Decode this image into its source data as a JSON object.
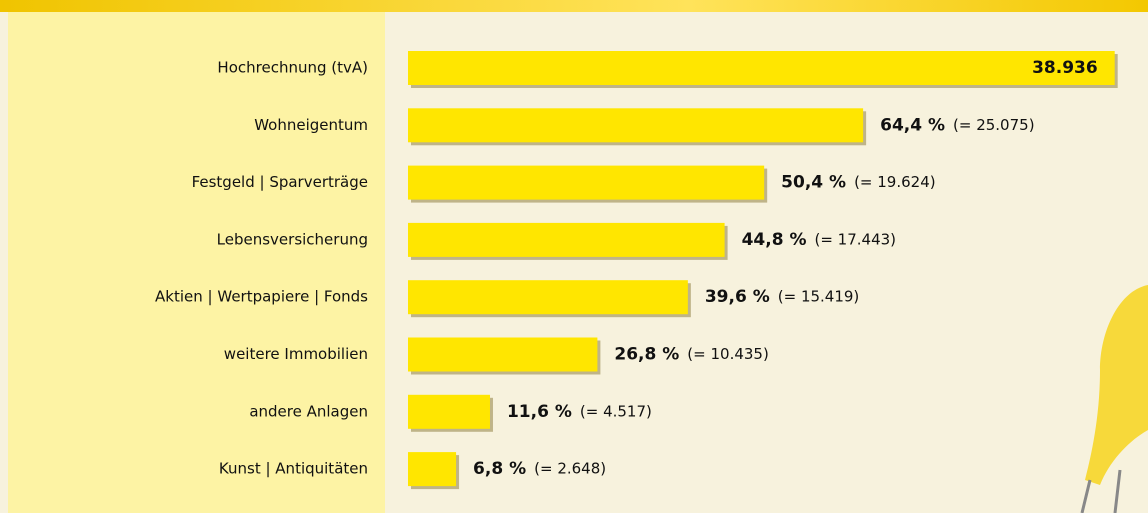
{
  "chart_data": {
    "type": "hbar",
    "categories": [
      "Hochrechnung (tvA)",
      "Wohneigentum",
      "Festgeld | Sparverträge",
      "Lebensversicherung",
      "Aktien | Wertpapiere | Fonds",
      "weitere Immobilien",
      "andere Anlagen",
      "Kunst | Antiquitäten"
    ],
    "values": [
      38936,
      25075,
      19624,
      17443,
      15419,
      10435,
      4517,
      2648
    ],
    "value_labels": [
      "38.936",
      "(= 25.075)",
      "(= 19.624)",
      "(= 17.443)",
      "(= 15.419)",
      "(= 10.435)",
      "(= 4.517)",
      "(= 2.648)"
    ],
    "percent_labels": [
      null,
      "64,4 %",
      "50,4 %",
      "44,8 %",
      "39,6 %",
      "26,8 %",
      "11,6 %",
      "6,8 %"
    ],
    "color": "#ffe600",
    "xlim": [
      0,
      40000
    ]
  }
}
